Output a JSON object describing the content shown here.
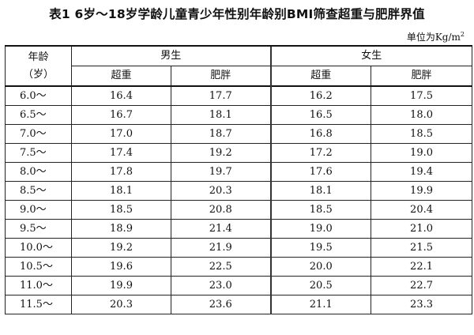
{
  "title": "表1 6岁～18岁学龄儿童青少年性别年龄别BMI筛查超重与肥胖界值",
  "unit_label": "单位为Kg/m",
  "unit_sup": "2",
  "headers": {
    "age_line1": "年龄",
    "age_line2": "（岁）",
    "male": "男生",
    "female": "女生",
    "overweight": "超重",
    "obese": "肥胖"
  },
  "rows": [
    {
      "age": "6.0～",
      "m_over": "16.4",
      "m_obese": "17.7",
      "f_over": "16.2",
      "f_obese": "17.5"
    },
    {
      "age": "6.5～",
      "m_over": "16.7",
      "m_obese": "18.1",
      "f_over": "16.5",
      "f_obese": "18.0"
    },
    {
      "age": "7.0～",
      "m_over": "17.0",
      "m_obese": "18.7",
      "f_over": "16.8",
      "f_obese": "18.5"
    },
    {
      "age": "7.5～",
      "m_over": "17.4",
      "m_obese": "19.2",
      "f_over": "17.2",
      "f_obese": "19.0"
    },
    {
      "age": "8.0～",
      "m_over": "17.8",
      "m_obese": "19.7",
      "f_over": "17.6",
      "f_obese": "19.4"
    },
    {
      "age": "8.5～",
      "m_over": "18.1",
      "m_obese": "20.3",
      "f_over": "18.1",
      "f_obese": "19.9"
    },
    {
      "age": "9.0～",
      "m_over": "18.5",
      "m_obese": "20.8",
      "f_over": "18.5",
      "f_obese": "20.4"
    },
    {
      "age": "9.5～",
      "m_over": "18.9",
      "m_obese": "21.4",
      "f_over": "19.0",
      "f_obese": "21.0"
    },
    {
      "age": "10.0～",
      "m_over": "19.2",
      "m_obese": "21.9",
      "f_over": "19.5",
      "f_obese": "21.5"
    },
    {
      "age": "10.5～",
      "m_over": "19.6",
      "m_obese": "22.5",
      "f_over": "20.0",
      "f_obese": "22.1"
    },
    {
      "age": "11.0～",
      "m_over": "19.9",
      "m_obese": "23.0",
      "f_over": "20.5",
      "f_obese": "22.7"
    },
    {
      "age": "11.5～",
      "m_over": "20.3",
      "m_obese": "23.6",
      "f_over": "21.1",
      "f_obese": "23.3"
    }
  ]
}
